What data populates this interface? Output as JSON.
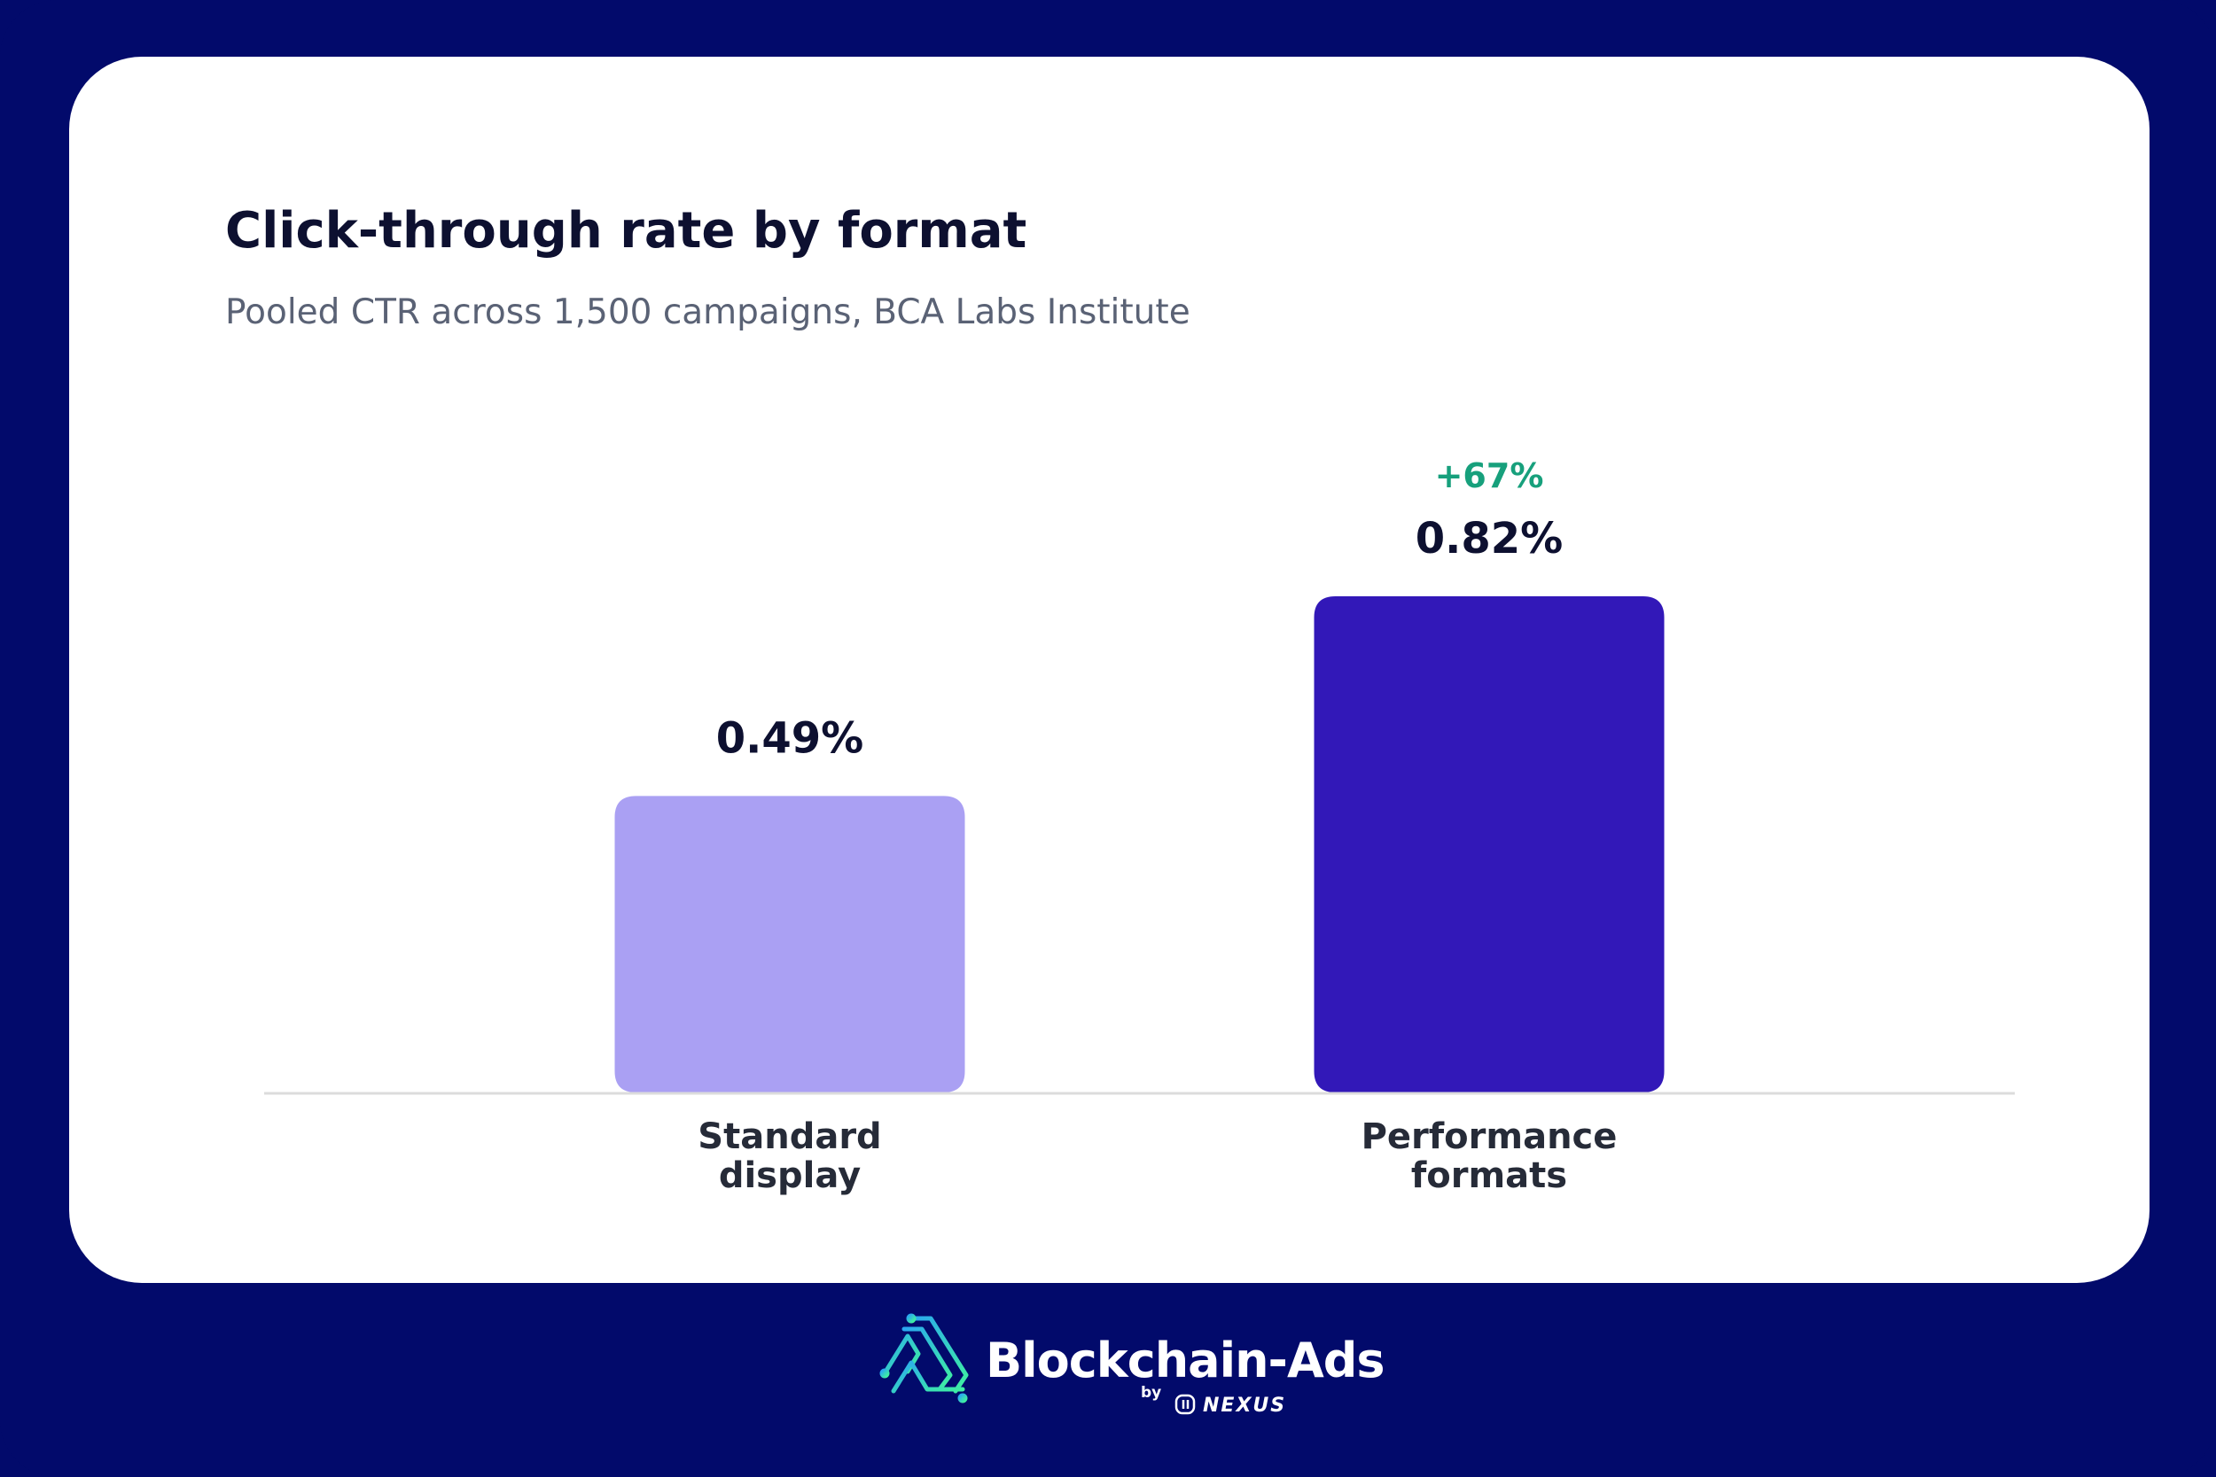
{
  "colors": {
    "background": "#020a6b",
    "card": "#ffffff",
    "title": "#0d1030",
    "subtitle": "#5a6275",
    "bar_standard": "#aaa0f3",
    "bar_performance": "#3218b8",
    "uplift": "#17a07c",
    "axis": "#dcdcdc",
    "tick_label": "#262b38"
  },
  "chart_data": {
    "type": "bar",
    "title": "Click-through rate by format",
    "subtitle": "Pooled CTR across 1,500 campaigns, BCA Labs Institute",
    "categories": [
      [
        "Standard",
        "display"
      ],
      [
        "Performance",
        "formats"
      ]
    ],
    "values": [
      0.49,
      0.82
    ],
    "unit": "%",
    "value_labels": [
      "0.49%",
      "0.82%"
    ],
    "annotations": [
      {
        "category_index": 1,
        "text": "+67%"
      }
    ],
    "xlabel": "",
    "ylabel": "",
    "ylim": [
      0,
      1.0
    ],
    "grid": false,
    "legend": "none"
  },
  "logo": {
    "name": "Blockchain-Ads",
    "by": "by",
    "partner": "NEXUS",
    "icon": "blockchain-ads-logo-icon"
  }
}
